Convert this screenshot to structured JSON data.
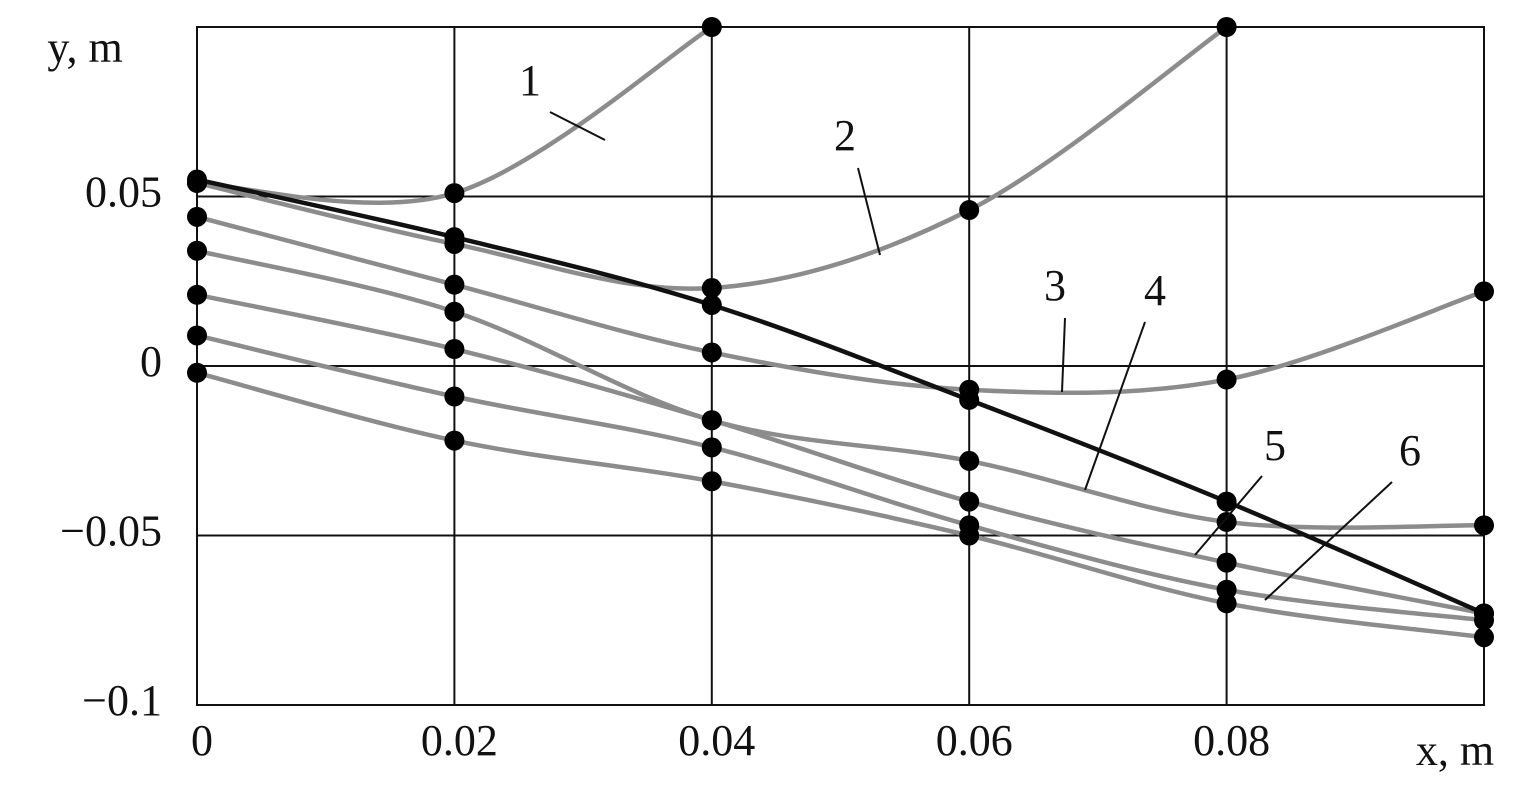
{
  "chart_data": {
    "type": "line",
    "xlabel": "x, m",
    "ylabel": "y, m",
    "x": [
      0,
      0.02,
      0.04,
      0.06,
      0.08,
      0.1
    ],
    "xlim": [
      0,
      0.1
    ],
    "ylim": [
      -0.1,
      0.1
    ],
    "xticks": [
      0,
      0.02,
      0.04,
      0.06,
      0.08
    ],
    "yticks": [
      {
        "value": -0.1,
        "label": "−0.1"
      },
      {
        "value": -0.05,
        "label": "−0.05"
      },
      0,
      0.05
    ],
    "grid": true,
    "series": [
      {
        "name": "1",
        "color": "#8c8c8c",
        "values": [
          0.054,
          0.051,
          0.1,
          null,
          null,
          null
        ]
      },
      {
        "name": "2",
        "color": "#8c8c8c",
        "values": [
          0.054,
          0.036,
          0.023,
          0.046,
          0.1,
          null
        ]
      },
      {
        "name": "3",
        "color": "#8c8c8c",
        "values": [
          0.044,
          0.024,
          0.004,
          -0.007,
          -0.004,
          0.022
        ]
      },
      {
        "name": "4",
        "color": "#8c8c8c",
        "values": [
          0.034,
          0.016,
          -0.016,
          -0.028,
          -0.046,
          -0.047
        ]
      },
      {
        "name": "5",
        "color": "#8c8c8c",
        "values": [
          0.021,
          0.005,
          -0.016,
          -0.04,
          -0.058,
          -0.073
        ]
      },
      {
        "name": "6",
        "color": "#8c8c8c",
        "values": [
          0.009,
          -0.009,
          -0.024,
          -0.047,
          -0.066,
          -0.075
        ]
      },
      {
        "color": "#8c8c8c",
        "values": [
          -0.002,
          -0.022,
          -0.034,
          -0.05,
          -0.07,
          -0.08
        ]
      },
      {
        "color": "#111111",
        "values": [
          0.055,
          0.038,
          0.018,
          -0.01,
          -0.04,
          -0.073
        ]
      }
    ]
  }
}
